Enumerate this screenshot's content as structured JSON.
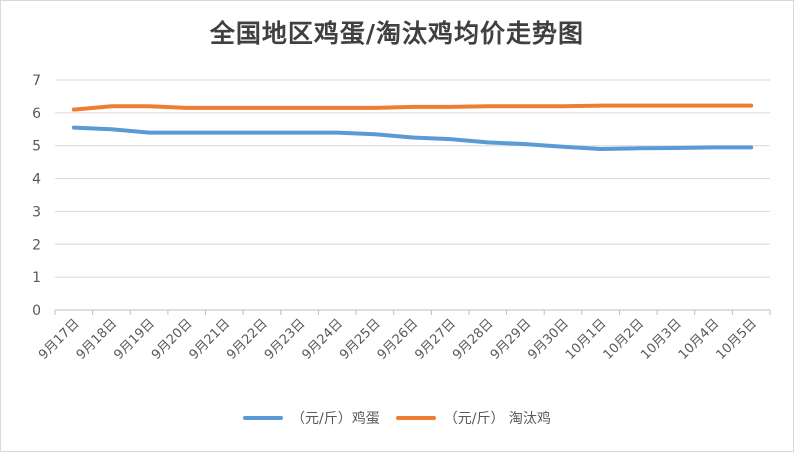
{
  "chart_data": {
    "type": "line",
    "title": "全国地区鸡蛋/淘汰鸡均价走势图",
    "categories": [
      "9月17日",
      "9月18日",
      "9月19日",
      "9月20日",
      "9月21日",
      "9月22日",
      "9月23日",
      "9月24日",
      "9月25日",
      "9月26日",
      "9月27日",
      "9月28日",
      "9月29日",
      "9月30日",
      "10月1日",
      "10月2日",
      "10月3日",
      "10月4日",
      "10月5日"
    ],
    "series": [
      {
        "name": "（元/斤）鸡蛋",
        "color": "#5b9bd5",
        "values": [
          5.55,
          5.5,
          5.4,
          5.4,
          5.4,
          5.4,
          5.4,
          5.4,
          5.35,
          5.25,
          5.2,
          5.1,
          5.05,
          4.97,
          4.9,
          4.92,
          4.93,
          4.95,
          4.95
        ]
      },
      {
        "name": "（元/斤） 淘汰鸡",
        "color": "#ed7d31",
        "values": [
          6.1,
          6.2,
          6.2,
          6.15,
          6.15,
          6.15,
          6.15,
          6.15,
          6.15,
          6.18,
          6.18,
          6.2,
          6.2,
          6.2,
          6.22,
          6.22,
          6.22,
          6.22,
          6.22
        ]
      }
    ],
    "ylim": [
      0,
      7
    ],
    "yticks": [
      "0",
      "1",
      "2",
      "3",
      "4",
      "5",
      "6",
      "7"
    ],
    "grid": true,
    "legend_position": "bottom"
  }
}
